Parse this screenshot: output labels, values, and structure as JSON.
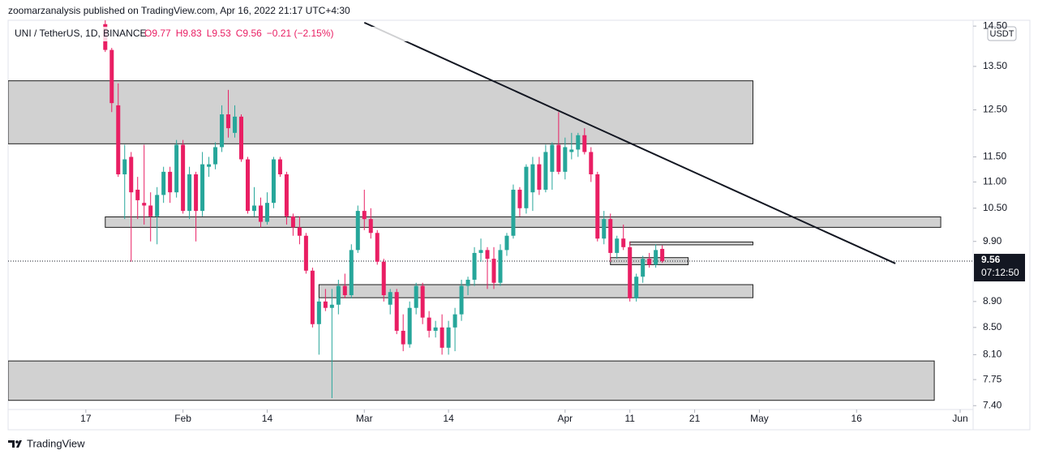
{
  "header": {
    "publisher": "zoomarzanalysis published on TradingView.com, Apr 16, 2022 21:17 UTC+4:30",
    "symbol": "UNI / TetherUS, 1D, BINANCE",
    "ohlc": [
      "O9.77",
      "H9.83",
      "L9.53",
      "C9.56",
      "−0.21 (−2.15%)"
    ],
    "currency": "USDT",
    "brand": "TradingView"
  },
  "chart_data": {
    "type": "candlestick",
    "log_scale": true,
    "grid": false,
    "up_color": "#26a69a",
    "down_color": "#e91e63",
    "x": [
      "01-20",
      "01-21",
      "01-22",
      "01-23",
      "01-24",
      "01-25",
      "01-26",
      "01-27",
      "01-28",
      "01-29",
      "01-30",
      "01-31",
      "02-01",
      "02-02",
      "02-03",
      "02-04",
      "02-05",
      "02-06",
      "02-07",
      "02-08",
      "02-09",
      "02-10",
      "02-11",
      "02-12",
      "02-13",
      "02-14",
      "02-15",
      "02-16",
      "02-17",
      "02-18",
      "02-19",
      "02-20",
      "02-21",
      "02-22",
      "02-23",
      "02-24",
      "02-25",
      "02-26",
      "02-27",
      "02-28",
      "03-01",
      "03-02",
      "03-03",
      "03-04",
      "03-05",
      "03-06",
      "03-07",
      "03-08",
      "03-09",
      "03-10",
      "03-11",
      "03-12",
      "03-13",
      "03-14",
      "03-15",
      "03-16",
      "03-17",
      "03-18",
      "03-19",
      "03-20",
      "03-21",
      "03-22",
      "03-23",
      "03-24",
      "03-25",
      "03-26",
      "03-27",
      "03-28",
      "03-29",
      "03-30",
      "03-31",
      "04-01",
      "04-02",
      "04-03",
      "04-04",
      "04-05",
      "04-06",
      "04-07",
      "04-08",
      "04-09",
      "04-10",
      "04-11",
      "04-12",
      "04-13",
      "04-14",
      "04-15",
      "04-16"
    ],
    "open": [
      14.55,
      13.9,
      12.6,
      11.15,
      11.5,
      10.85,
      10.6,
      10.55,
      10.35,
      10.75,
      11.2,
      10.8,
      11.75,
      10.45,
      11.15,
      10.45,
      11.3,
      11.35,
      11.7,
      12.4,
      12.0,
      12.35,
      11.45,
      10.45,
      10.55,
      10.25,
      10.6,
      11.45,
      11.15,
      10.35,
      10.15,
      10.0,
      9.4,
      8.55,
      8.9,
      8.8,
      8.85,
      9.15,
      9.0,
      9.75,
      10.45,
      10.3,
      10.05,
      9.55,
      8.85,
      9.05,
      8.45,
      8.25,
      8.8,
      9.15,
      8.65,
      8.45,
      8.5,
      8.2,
      8.5,
      8.7,
      9.15,
      9.25,
      9.7,
      9.75,
      9.6,
      9.2,
      9.75,
      10.0,
      10.85,
      10.5,
      10.8,
      11.35,
      10.85,
      11.2,
      11.75,
      11.2,
      11.6,
      11.65,
      11.95,
      11.6,
      11.15,
      9.95,
      10.3,
      9.7,
      9.95,
      9.8,
      8.95,
      9.3,
      9.6,
      9.5,
      9.77
    ],
    "high": [
      14.65,
      13.95,
      13.1,
      11.75,
      11.6,
      11.1,
      11.75,
      10.8,
      10.9,
      11.3,
      11.3,
      11.85,
      11.85,
      11.3,
      11.2,
      11.6,
      11.5,
      11.8,
      12.6,
      12.95,
      12.6,
      12.4,
      11.5,
      10.9,
      10.7,
      10.8,
      11.5,
      11.5,
      11.2,
      10.4,
      10.35,
      10.05,
      9.45,
      8.95,
      9.1,
      9.1,
      9.25,
      9.35,
      9.85,
      10.55,
      10.85,
      10.5,
      10.1,
      9.6,
      9.1,
      9.1,
      8.7,
      8.9,
      9.2,
      9.2,
      8.75,
      8.6,
      8.7,
      8.6,
      8.8,
      9.25,
      9.3,
      9.8,
      9.95,
      9.8,
      9.8,
      9.85,
      10.05,
      10.95,
      10.9,
      11.35,
      11.5,
      11.5,
      11.75,
      11.8,
      12.45,
      11.9,
      12.0,
      12.0,
      12.1,
      11.7,
      11.2,
      10.45,
      10.4,
      10.0,
      10.2,
      9.9,
      9.35,
      9.65,
      9.7,
      9.85,
      9.83
    ],
    "low": [
      13.85,
      12.45,
      11.1,
      10.3,
      9.55,
      10.3,
      10.2,
      9.9,
      9.85,
      10.6,
      10.6,
      10.7,
      10.4,
      10.3,
      9.9,
      10.35,
      11.1,
      11.25,
      11.6,
      11.9,
      11.9,
      11.4,
      10.4,
      10.35,
      10.15,
      10.2,
      10.5,
      11.1,
      10.2,
      10.0,
      9.85,
      9.35,
      8.5,
      8.1,
      8.75,
      7.5,
      8.7,
      8.95,
      8.95,
      9.7,
      10.1,
      9.95,
      9.5,
      8.9,
      8.7,
      8.4,
      8.15,
      8.2,
      8.7,
      8.55,
      8.35,
      8.35,
      8.1,
      8.1,
      8.15,
      8.6,
      9.0,
      9.15,
      9.55,
      9.1,
      9.1,
      9.15,
      9.65,
      9.95,
      10.35,
      10.4,
      10.45,
      10.75,
      10.8,
      10.85,
      11.15,
      11.05,
      11.45,
      11.5,
      11.55,
      11.0,
      9.9,
      9.85,
      9.55,
      9.6,
      9.75,
      8.9,
      8.9,
      9.2,
      9.45,
      9.45,
      9.53
    ],
    "close": [
      13.9,
      12.65,
      11.15,
      11.45,
      10.8,
      10.65,
      10.55,
      10.35,
      10.75,
      11.2,
      10.8,
      11.75,
      10.45,
      11.15,
      10.45,
      11.35,
      11.35,
      11.7,
      12.4,
      12.1,
      12.35,
      11.45,
      10.45,
      10.55,
      10.25,
      10.6,
      11.45,
      11.15,
      10.35,
      10.15,
      10.0,
      9.4,
      8.55,
      8.9,
      8.8,
      8.85,
      9.15,
      9.0,
      9.75,
      10.45,
      10.3,
      10.05,
      9.55,
      9.0,
      9.05,
      8.45,
      8.25,
      8.8,
      9.15,
      8.65,
      8.45,
      8.5,
      8.2,
      8.5,
      8.7,
      9.15,
      9.25,
      9.7,
      9.75,
      9.6,
      9.2,
      9.75,
      10.0,
      10.85,
      10.5,
      11.3,
      11.35,
      10.85,
      11.6,
      11.75,
      11.2,
      11.7,
      11.65,
      11.95,
      11.6,
      11.15,
      9.95,
      10.3,
      9.7,
      9.95,
      9.8,
      8.95,
      9.3,
      9.6,
      9.5,
      9.75,
      9.56
    ],
    "xlim": [
      "01-05",
      "06-03"
    ],
    "xticks": [
      {
        "value": "01-17",
        "label": "17"
      },
      {
        "value": "02-01",
        "label": "Feb"
      },
      {
        "value": "02-14",
        "label": "14"
      },
      {
        "value": "03-01",
        "label": "Mar"
      },
      {
        "value": "03-14",
        "label": "14"
      },
      {
        "value": "04-01",
        "label": "Apr"
      },
      {
        "value": "04-11",
        "label": "11"
      },
      {
        "value": "04-21",
        "label": "21"
      },
      {
        "value": "05-01",
        "label": "May"
      },
      {
        "value": "05-16",
        "label": "16"
      },
      {
        "value": "06-01",
        "label": "Jun"
      }
    ],
    "ylim": [
      7.35,
      14.65
    ],
    "yticks": [
      {
        "value": 7.4,
        "label": "7.40"
      },
      {
        "value": 7.75,
        "label": "7.75"
      },
      {
        "value": 8.1,
        "label": "8.10"
      },
      {
        "value": 8.5,
        "label": "8.50"
      },
      {
        "value": 8.9,
        "label": "8.90"
      },
      {
        "value": 9.9,
        "label": "9.90"
      },
      {
        "value": 10.5,
        "label": "10.50"
      },
      {
        "value": 11,
        "label": "11.00"
      },
      {
        "value": 11.5,
        "label": "11.50"
      },
      {
        "value": 12.5,
        "label": "12.50"
      },
      {
        "value": 13.5,
        "label": "13.50"
      },
      {
        "value": 14.5,
        "label": "14.50"
      }
    ],
    "zones": [
      {
        "x": [
          "01-05",
          "04-30"
        ],
        "y": [
          11.77,
          13.16
        ]
      },
      {
        "x": [
          "01-20",
          "05-29"
        ],
        "y": [
          10.15,
          10.34
        ]
      },
      {
        "x": [
          "04-11",
          "04-30"
        ],
        "y": [
          9.84,
          9.89
        ]
      },
      {
        "x": [
          "04-08",
          "04-20"
        ],
        "y": [
          9.5,
          9.62
        ]
      },
      {
        "x": [
          "02-22",
          "04-30"
        ],
        "y": [
          8.96,
          9.17
        ]
      },
      {
        "x": [
          "01-05",
          "05-28"
        ],
        "y": [
          7.47,
          8.01
        ]
      }
    ],
    "trendline": {
      "x": [
        "03-01",
        "05-22"
      ],
      "y": [
        14.59,
        9.52
      ]
    },
    "last_price": 9.56,
    "countdown": "07:12:50"
  }
}
